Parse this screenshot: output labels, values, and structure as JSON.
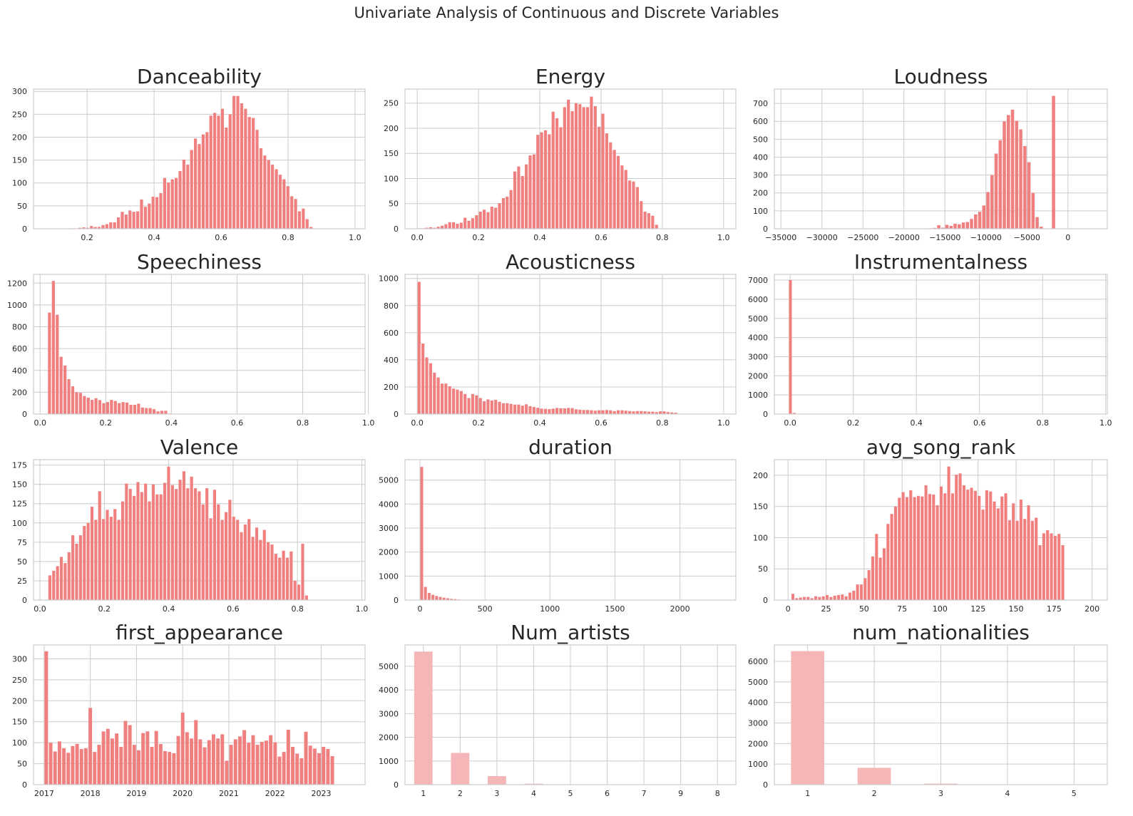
{
  "figure": {
    "title": "Univariate Analysis of Continuous and Discrete Variables"
  },
  "colors": {
    "bar_continuous": "#f08080",
    "bar_discrete": "#f4b6b6",
    "grid": "#cccccc",
    "text": "#262626"
  },
  "chart_data": [
    {
      "type": "bar",
      "title": "Danceability",
      "xlim": [
        0.04,
        1.03
      ],
      "ylim": [
        0,
        305
      ],
      "xticks": [
        0.2,
        0.4,
        0.6,
        0.8,
        1.0
      ],
      "xtick_labels": [
        "0.2",
        "0.4",
        "0.6",
        "0.8",
        "1.0"
      ],
      "yticks": [
        0,
        50,
        100,
        150,
        200,
        250,
        300
      ],
      "bin_start": 0.15,
      "bin_width": 0.0115,
      "values": [
        1,
        1,
        2,
        3,
        2,
        6,
        4,
        4,
        8,
        10,
        14,
        14,
        25,
        37,
        31,
        40,
        37,
        38,
        64,
        48,
        55,
        70,
        69,
        78,
        111,
        101,
        108,
        111,
        126,
        151,
        140,
        172,
        197,
        185,
        206,
        211,
        247,
        253,
        247,
        262,
        221,
        250,
        290,
        290,
        274,
        262,
        244,
        242,
        216,
        176,
        160,
        150,
        140,
        130,
        118,
        108,
        93,
        71,
        65,
        38,
        44,
        21,
        4
      ]
    },
    {
      "type": "bar",
      "title": "Energy",
      "xlim": [
        -0.04,
        1.04
      ],
      "ylim": [
        0,
        278
      ],
      "xticks": [
        0.0,
        0.2,
        0.4,
        0.6,
        0.8,
        1.0
      ],
      "xtick_labels": [
        "0.0",
        "0.2",
        "0.4",
        "0.6",
        "0.8",
        "1.0"
      ],
      "yticks": [
        0,
        50,
        100,
        150,
        200,
        250
      ],
      "bin_start": 0.0,
      "bin_width": 0.0125,
      "values": [
        1,
        1,
        2,
        3,
        2,
        4,
        6,
        9,
        13,
        13,
        10,
        12,
        22,
        16,
        21,
        27,
        34,
        38,
        33,
        44,
        42,
        51,
        61,
        64,
        77,
        114,
        124,
        105,
        128,
        146,
        148,
        187,
        192,
        196,
        188,
        233,
        220,
        202,
        242,
        257,
        234,
        250,
        248,
        242,
        242,
        263,
        244,
        203,
        229,
        190,
        172,
        157,
        145,
        126,
        117,
        96,
        94,
        83,
        55,
        34,
        31,
        26,
        8
      ]
    },
    {
      "type": "bar",
      "title": "Loudness",
      "xlim": [
        -35800,
        4800
      ],
      "ylim": [
        0,
        780
      ],
      "xticks": [
        -35000,
        -30000,
        -25000,
        -20000,
        -15000,
        -10000,
        -5000,
        0
      ],
      "xtick_labels": [
        "−35000",
        "−30000",
        "−25000",
        "−20000",
        "−15000",
        "−10000",
        "−5000",
        "0"
      ],
      "yticks": [
        0,
        100,
        200,
        300,
        400,
        500,
        600,
        700
      ],
      "bin_start": -18000,
      "bin_width": 500,
      "values": [
        2,
        0,
        3,
        5,
        20,
        6,
        22,
        16,
        28,
        25,
        35,
        38,
        55,
        80,
        95,
        130,
        205,
        300,
        420,
        495,
        600,
        635,
        665,
        603,
        555,
        462,
        372,
        200,
        65,
        12,
        0,
        0,
        742
      ]
    },
    {
      "type": "bar",
      "title": "Speechiness",
      "xlim": [
        -0.02,
        0.99
      ],
      "ylim": [
        0,
        1280
      ],
      "xticks": [
        0.0,
        0.2,
        0.4,
        0.6,
        0.8,
        1.0
      ],
      "xtick_labels": [
        "0.0",
        "0.2",
        "0.4",
        "0.6",
        "0.8",
        "1.0"
      ],
      "yticks": [
        0,
        200,
        400,
        600,
        800,
        1000,
        1200
      ],
      "bin_start": 0.023,
      "bin_width": 0.0118,
      "values": [
        930,
        1220,
        910,
        525,
        445,
        320,
        255,
        200,
        195,
        165,
        150,
        130,
        145,
        128,
        100,
        110,
        130,
        120,
        100,
        110,
        105,
        85,
        85,
        95,
        60,
        55,
        55,
        45,
        25,
        30,
        30,
        5,
        3,
        2
      ]
    },
    {
      "type": "bar",
      "title": "Acousticness",
      "xlim": [
        -0.04,
        1.04
      ],
      "ylim": [
        0,
        1030
      ],
      "xticks": [
        0.0,
        0.2,
        0.4,
        0.6,
        0.8,
        1.0
      ],
      "xtick_labels": [
        "0.0",
        "0.2",
        "0.4",
        "0.6",
        "0.8",
        "1.0"
      ],
      "yticks": [
        0,
        200,
        400,
        600,
        800,
        1000
      ],
      "bin_start": 0.0,
      "bin_width": 0.0125,
      "values": [
        975,
        520,
        418,
        375,
        305,
        270,
        225,
        225,
        205,
        188,
        180,
        170,
        148,
        118,
        148,
        138,
        118,
        95,
        108,
        100,
        105,
        90,
        80,
        80,
        75,
        70,
        70,
        62,
        72,
        58,
        52,
        46,
        40,
        38,
        36,
        40,
        45,
        42,
        42,
        45,
        44,
        35,
        32,
        30,
        30,
        28,
        25,
        28,
        28,
        30,
        28,
        22,
        28,
        28,
        25,
        22,
        20,
        22,
        22,
        20,
        18,
        18,
        15,
        20,
        20,
        15,
        12,
        10
      ]
    },
    {
      "type": "bar",
      "title": "Instrumentalness",
      "xlim": [
        -0.05,
        1.005
      ],
      "ylim": [
        0,
        7300
      ],
      "xticks": [
        0.0,
        0.2,
        0.4,
        0.6,
        0.8,
        1.0
      ],
      "xtick_labels": [
        "0.0",
        "0.2",
        "0.4",
        "0.6",
        "0.8",
        "1.0"
      ],
      "yticks": [
        0,
        1000,
        2000,
        3000,
        4000,
        5000,
        6000,
        7000
      ],
      "bin_start": -0.005,
      "bin_width": 0.012,
      "values": [
        7000,
        60,
        10,
        5,
        3,
        2,
        2,
        2,
        1,
        1,
        1,
        1
      ]
    },
    {
      "type": "bar",
      "title": "Valence",
      "xlim": [
        -0.02,
        1.01
      ],
      "ylim": [
        0,
        182
      ],
      "xticks": [
        0.0,
        0.2,
        0.4,
        0.6,
        0.8,
        1.0
      ],
      "xtick_labels": [
        "0.0",
        "0.2",
        "0.4",
        "0.6",
        "0.8",
        "1.0"
      ],
      "yticks": [
        0,
        25,
        50,
        75,
        100,
        125,
        150,
        175
      ],
      "bin_start": 0.025,
      "bin_width": 0.0119,
      "values": [
        32,
        38,
        44,
        56,
        48,
        62,
        84,
        73,
        84,
        96,
        100,
        121,
        104,
        141,
        105,
        117,
        108,
        118,
        104,
        128,
        151,
        144,
        135,
        153,
        140,
        151,
        128,
        150,
        137,
        137,
        152,
        173,
        149,
        144,
        156,
        167,
        145,
        160,
        145,
        141,
        124,
        145,
        106,
        143,
        124,
        104,
        114,
        130,
        108,
        104,
        88,
        98,
        105,
        82,
        94,
        78,
        91,
        75,
        72,
        60,
        55,
        64,
        55,
        63,
        25,
        20,
        73,
        6
      ]
    },
    {
      "type": "bar",
      "title": "duration",
      "xlim": [
        -115,
        2430
      ],
      "ylim": [
        0,
        5850
      ],
      "xticks": [
        0,
        500,
        1000,
        1500,
        2000
      ],
      "xtick_labels": [
        "0",
        "500",
        "1000",
        "1500",
        "2000"
      ],
      "yticks": [
        0,
        1000,
        2000,
        3000,
        4000,
        5000
      ],
      "bin_start": 0,
      "bin_width": 28.5,
      "values": [
        5550,
        550,
        300,
        220,
        170,
        130,
        100,
        75,
        50,
        40,
        25,
        15,
        10,
        8,
        5,
        4,
        3,
        2,
        2,
        1,
        1,
        1
      ]
    },
    {
      "type": "bar",
      "title": "avg_song_rank",
      "xlim": [
        -9,
        210
      ],
      "ylim": [
        0,
        225
      ],
      "xticks": [
        0,
        25,
        50,
        75,
        100,
        125,
        150,
        175,
        200
      ],
      "xtick_labels": [
        "0",
        "25",
        "50",
        "75",
        "100",
        "125",
        "150",
        "175",
        "200"
      ],
      "yticks": [
        0,
        50,
        100,
        150,
        200
      ],
      "bin_start": 2.0,
      "bin_width": 2.5,
      "values": [
        10,
        3,
        4,
        5,
        5,
        3,
        6,
        5,
        6,
        8,
        5,
        7,
        8,
        9,
        6,
        12,
        15,
        25,
        25,
        35,
        48,
        70,
        106,
        68,
        83,
        122,
        138,
        150,
        164,
        173,
        165,
        176,
        165,
        167,
        166,
        184,
        170,
        169,
        152,
        182,
        171,
        214,
        171,
        201,
        203,
        184,
        177,
        180,
        175,
        167,
        145,
        176,
        174,
        158,
        147,
        166,
        171,
        128,
        155,
        127,
        161,
        130,
        152,
        127,
        132,
        88,
        107,
        112,
        107,
        103,
        106,
        88
      ]
    },
    {
      "type": "bar",
      "title": "first_appearance",
      "xlim": [
        2016.77,
        2023.95
      ],
      "ylim": [
        0,
        333
      ],
      "xticks": [
        2017,
        2018,
        2019,
        2020,
        2021,
        2022,
        2023
      ],
      "xtick_labels": [
        "2017",
        "2018",
        "2019",
        "2020",
        "2021",
        "2022",
        "2023"
      ],
      "yticks": [
        0,
        50,
        100,
        150,
        200,
        250,
        300
      ],
      "bin_start": 2017.0,
      "bin_width": 0.0953,
      "values": [
        318,
        100,
        79,
        103,
        87,
        76,
        92,
        97,
        85,
        87,
        183,
        78,
        95,
        127,
        133,
        110,
        122,
        90,
        152,
        142,
        95,
        82,
        123,
        127,
        90,
        128,
        97,
        80,
        78,
        75,
        116,
        172,
        125,
        110,
        154,
        108,
        89,
        106,
        120,
        110,
        120,
        57,
        95,
        108,
        115,
        130,
        100,
        118,
        95,
        102,
        105,
        118,
        101,
        67,
        78,
        131,
        90,
        74,
        63,
        126,
        93,
        86,
        75,
        90,
        85,
        68
      ]
    },
    {
      "type": "bar",
      "title": "Num_artists",
      "xlim": [
        -0.5,
        8.5
      ],
      "ylim": [
        0,
        5900
      ],
      "categories": [
        "1",
        "2",
        "3",
        "4",
        "5",
        "6",
        "7",
        "9",
        "8"
      ],
      "yticks": [
        0,
        1000,
        2000,
        3000,
        4000,
        5000
      ],
      "values": [
        5620,
        1340,
        360,
        40,
        10,
        5,
        3,
        2,
        1
      ]
    },
    {
      "type": "bar",
      "title": "num_nationalities",
      "xlim": [
        -0.5,
        4.5
      ],
      "ylim": [
        0,
        6800
      ],
      "categories": [
        "1",
        "2",
        "3",
        "4",
        "5"
      ],
      "yticks": [
        0,
        1000,
        2000,
        3000,
        4000,
        5000,
        6000
      ],
      "values": [
        6500,
        820,
        50,
        5,
        1
      ]
    }
  ]
}
